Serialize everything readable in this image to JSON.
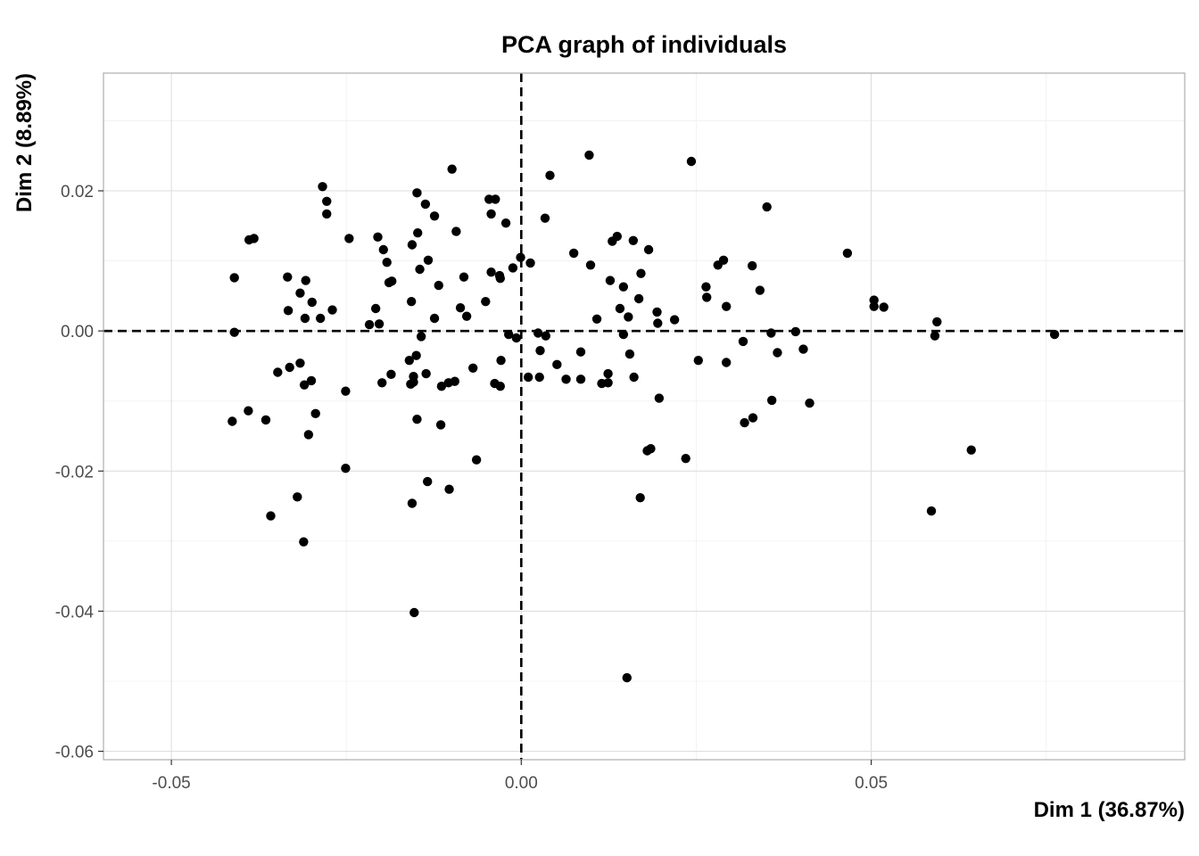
{
  "chart_data": {
    "type": "scatter",
    "title": "PCA graph of individuals",
    "xlabel": "Dim 1 (36.87%)",
    "ylabel": "Dim 2 (8.89%)",
    "xlim": [
      -0.0597,
      0.0948
    ],
    "ylim": [
      -0.0612,
      0.0368
    ],
    "x_ticks": [
      -0.05,
      0.0,
      0.05
    ],
    "x_tick_labels": [
      "-0.05",
      "0.00",
      "0.05"
    ],
    "y_ticks": [
      0.02,
      0.0,
      -0.02,
      -0.04,
      -0.06
    ],
    "y_tick_labels": [
      "0.02",
      "0.00",
      "-0.02",
      "-0.04",
      "-0.06"
    ],
    "grid": true,
    "reference_lines": {
      "x": 0.0,
      "y": 0.0,
      "style": "dashed"
    },
    "point_color": "#000000",
    "points": [
      [
        -0.0284,
        0.0206
      ],
      [
        -0.0278,
        0.0185
      ],
      [
        -0.0278,
        0.0167
      ],
      [
        -0.0389,
        0.013
      ],
      [
        -0.0382,
        0.0132
      ],
      [
        -0.0246,
        0.0132
      ],
      [
        -0.041,
        0.0076
      ],
      [
        -0.041,
        -0.0002
      ],
      [
        -0.0334,
        0.0077
      ],
      [
        -0.0308,
        0.0072
      ],
      [
        -0.0316,
        0.0054
      ],
      [
        -0.0299,
        0.0041
      ],
      [
        -0.0333,
        0.0029
      ],
      [
        -0.027,
        0.003
      ],
      [
        -0.0309,
        0.0018
      ],
      [
        -0.0287,
        0.0018
      ],
      [
        -0.0348,
        -0.0059
      ],
      [
        -0.0331,
        -0.0052
      ],
      [
        -0.0316,
        -0.0046
      ],
      [
        -0.03,
        -0.0071
      ],
      [
        -0.031,
        -0.0077
      ],
      [
        -0.0251,
        -0.0086
      ],
      [
        -0.039,
        -0.0114
      ],
      [
        -0.0365,
        -0.0127
      ],
      [
        -0.0413,
        -0.0129
      ],
      [
        -0.0294,
        -0.0118
      ],
      [
        -0.0304,
        -0.0148
      ],
      [
        -0.0251,
        -0.0196
      ],
      [
        -0.032,
        -0.0237
      ],
      [
        -0.0358,
        -0.0264
      ],
      [
        -0.0311,
        -0.0301
      ],
      [
        -0.0149,
        0.0197
      ],
      [
        -0.0137,
        0.0181
      ],
      [
        -0.0124,
        0.0164
      ],
      [
        -0.0099,
        0.0231
      ],
      [
        -0.0046,
        0.0188
      ],
      [
        -0.0037,
        0.0188
      ],
      [
        -0.0043,
        0.0167
      ],
      [
        -0.0022,
        0.0154
      ],
      [
        -0.0205,
        0.0134
      ],
      [
        -0.0197,
        0.0116
      ],
      [
        -0.0148,
        0.014
      ],
      [
        -0.0156,
        0.0123
      ],
      [
        -0.0093,
        0.0142
      ],
      [
        -0.0192,
        0.0098
      ],
      [
        -0.0133,
        0.0101
      ],
      [
        -0.0145,
        0.0088
      ],
      [
        -0.0189,
        0.0069
      ],
      [
        -0.0185,
        0.0071
      ],
      [
        -0.0118,
        0.0065
      ],
      [
        -0.0082,
        0.0077
      ],
      [
        -0.0043,
        0.0084
      ],
      [
        -0.0031,
        0.0079
      ],
      [
        -0.003,
        0.0075
      ],
      [
        -0.0012,
        0.009
      ],
      [
        -0.0157,
        0.0042
      ],
      [
        -0.0051,
        0.0042
      ],
      [
        -0.0087,
        0.0033
      ],
      [
        -0.0208,
        0.0032
      ],
      [
        -0.0078,
        0.0021
      ],
      [
        -0.0124,
        0.0018
      ],
      [
        -0.0217,
        0.0009
      ],
      [
        -0.0203,
        0.001
      ],
      [
        -0.0143,
        -0.0008
      ],
      [
        -0.0018,
        -0.0005
      ],
      [
        -0.0007,
        -0.001
      ],
      [
        -0.016,
        -0.0042
      ],
      [
        -0.015,
        -0.0035
      ],
      [
        -0.0186,
        -0.0062
      ],
      [
        -0.0154,
        -0.0065
      ],
      [
        -0.0136,
        -0.0061
      ],
      [
        -0.0069,
        -0.0053
      ],
      [
        -0.0029,
        -0.0042
      ],
      [
        -0.0199,
        -0.0074
      ],
      [
        -0.0158,
        -0.0076
      ],
      [
        -0.0154,
        -0.0073
      ],
      [
        -0.0114,
        -0.0079
      ],
      [
        -0.0104,
        -0.0074
      ],
      [
        -0.0095,
        -0.0072
      ],
      [
        -0.0038,
        -0.0075
      ],
      [
        -0.003,
        -0.0079
      ],
      [
        -0.0149,
        -0.0126
      ],
      [
        -0.0115,
        -0.0134
      ],
      [
        -0.0064,
        -0.0184
      ],
      [
        -0.0134,
        -0.0215
      ],
      [
        -0.0103,
        -0.0226
      ],
      [
        -0.0156,
        -0.0246
      ],
      [
        -0.0153,
        -0.0402
      ],
      [
        -0.0001,
        0.0105
      ],
      [
        0.0013,
        0.0097
      ],
      [
        0.0034,
        0.0161
      ],
      [
        0.0041,
        0.0222
      ],
      [
        0.0097,
        0.0251
      ],
      [
        0.0075,
        0.0111
      ],
      [
        0.0099,
        0.0094
      ],
      [
        0.0137,
        0.0135
      ],
      [
        0.013,
        0.0128
      ],
      [
        0.016,
        0.0129
      ],
      [
        0.0182,
        0.0116
      ],
      [
        0.0127,
        0.0072
      ],
      [
        0.0146,
        0.0063
      ],
      [
        0.0171,
        0.0082
      ],
      [
        0.0141,
        0.0032
      ],
      [
        0.0168,
        0.0046
      ],
      [
        0.0108,
        0.0017
      ],
      [
        0.0153,
        0.002
      ],
      [
        0.0194,
        0.0027
      ],
      [
        0.0195,
        0.0011
      ],
      [
        0.0219,
        0.0016
      ],
      [
        0.0024,
        -0.0003
      ],
      [
        0.0035,
        -0.0007
      ],
      [
        0.0027,
        -0.0028
      ],
      [
        0.0085,
        -0.003
      ],
      [
        0.0146,
        -0.0005
      ],
      [
        0.0155,
        -0.0033
      ],
      [
        0.0051,
        -0.0048
      ],
      [
        0.001,
        -0.0066
      ],
      [
        0.0026,
        -0.0066
      ],
      [
        0.0064,
        -0.0069
      ],
      [
        0.0085,
        -0.0069
      ],
      [
        0.0124,
        -0.0061
      ],
      [
        0.0115,
        -0.0075
      ],
      [
        0.0124,
        -0.0074
      ],
      [
        0.0161,
        -0.0066
      ],
      [
        0.0197,
        -0.0096
      ],
      [
        0.018,
        -0.0171
      ],
      [
        0.0185,
        -0.0168
      ],
      [
        0.017,
        -0.0238
      ],
      [
        0.0151,
        -0.0495
      ],
      [
        0.0243,
        0.0242
      ],
      [
        0.0351,
        0.0177
      ],
      [
        0.0289,
        0.0101
      ],
      [
        0.0281,
        0.0094
      ],
      [
        0.033,
        0.0093
      ],
      [
        0.0264,
        0.0063
      ],
      [
        0.0265,
        0.0048
      ],
      [
        0.0341,
        0.0058
      ],
      [
        0.0293,
        0.0035
      ],
      [
        0.0466,
        0.0111
      ],
      [
        0.0504,
        0.0044
      ],
      [
        0.0504,
        0.0035
      ],
      [
        0.0518,
        0.0034
      ],
      [
        0.0357,
        -0.0003
      ],
      [
        0.0392,
        -0.0001
      ],
      [
        0.0317,
        -0.0015
      ],
      [
        0.0366,
        -0.0031
      ],
      [
        0.0403,
        -0.0026
      ],
      [
        0.0253,
        -0.0042
      ],
      [
        0.0293,
        -0.0045
      ],
      [
        0.0358,
        -0.0099
      ],
      [
        0.0412,
        -0.0103
      ],
      [
        0.0331,
        -0.0124
      ],
      [
        0.0319,
        -0.0131
      ],
      [
        0.0235,
        -0.0182
      ],
      [
        0.0594,
        0.0013
      ],
      [
        0.0591,
        -0.0007
      ],
      [
        0.0762,
        -0.0005
      ],
      [
        0.0643,
        -0.017
      ],
      [
        0.0586,
        -0.0257
      ]
    ]
  }
}
